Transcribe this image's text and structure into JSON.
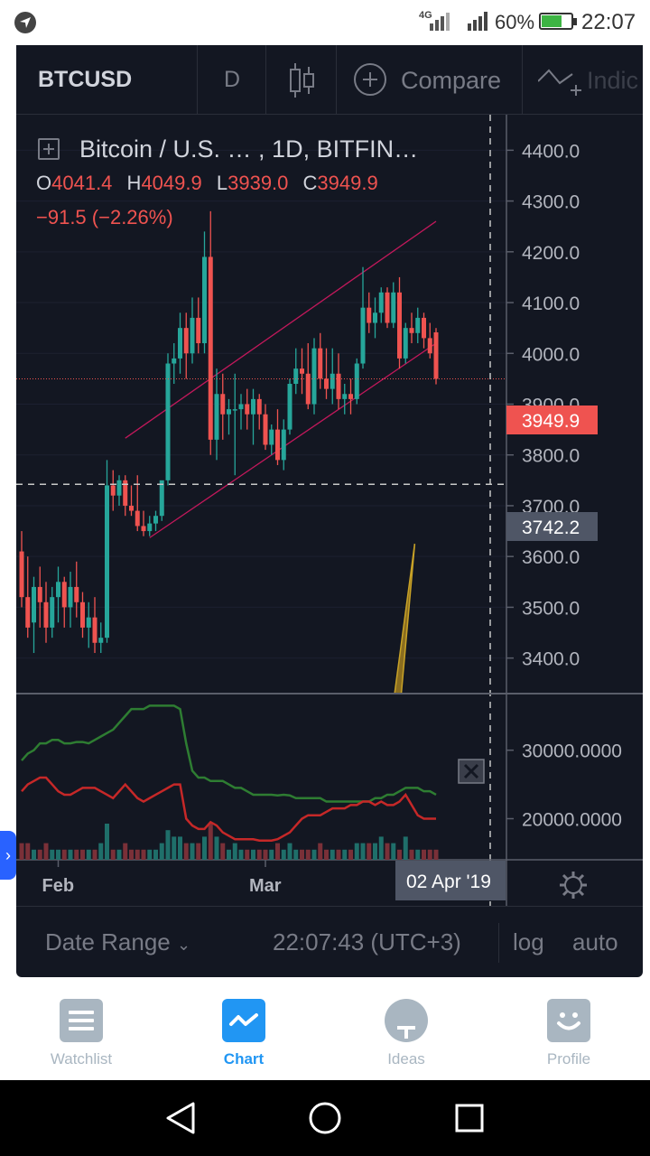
{
  "status_bar": {
    "network": "4G",
    "battery_percent": "60%",
    "battery_level": 0.6,
    "time": "22:07"
  },
  "toolbar": {
    "symbol": "BTCUSD",
    "interval": "D",
    "compare_label": "Compare",
    "indicators_label": "Indic"
  },
  "legend": {
    "title": "Bitcoin / U.S. …  , 1D, BITFIN…",
    "o_key": "O",
    "o_val": "4041.4",
    "h_key": "H",
    "h_val": "4049.9",
    "l_key": "L",
    "l_val": "3939.0",
    "c_key": "C",
    "c_val": "3949.9",
    "change": "−91.5 (−2.26%)"
  },
  "chart_data": [
    {
      "type": "candlestick",
      "symbol": "BTCUSD",
      "interval": "1D",
      "ylim": [
        3330,
        4470
      ],
      "price_ticks": [
        "4400.0",
        "4300.0",
        "4200.0",
        "4100.0",
        "4000.0",
        "3900.0",
        "3800.0",
        "3700.0",
        "3600.0",
        "3500.0",
        "3400.0"
      ],
      "price_tick_values": [
        4400,
        4300,
        4200,
        4100,
        4000,
        3900,
        3800,
        3700,
        3600,
        3500,
        3400
      ],
      "last_price_label": "3949.9",
      "last_price": 3949.9,
      "crosshair_price_label": "3742.2",
      "crosshair_price": 3742.2,
      "time_ticks": [
        "Feb",
        "Mar"
      ],
      "crosshair_date": "02 Apr '19",
      "colors": {
        "up": "#26a69a",
        "down": "#ef5350",
        "channel": "#c2185b",
        "projection": "#c8a227"
      },
      "candles": [
        {
          "o": 3610,
          "h": 3650,
          "l": 3500,
          "c": 3520
        },
        {
          "o": 3520,
          "h": 3600,
          "l": 3440,
          "c": 3460
        },
        {
          "o": 3470,
          "h": 3560,
          "l": 3410,
          "c": 3540
        },
        {
          "o": 3540,
          "h": 3580,
          "l": 3460,
          "c": 3510
        },
        {
          "o": 3510,
          "h": 3550,
          "l": 3430,
          "c": 3460
        },
        {
          "o": 3460,
          "h": 3540,
          "l": 3440,
          "c": 3520
        },
        {
          "o": 3520,
          "h": 3580,
          "l": 3470,
          "c": 3550
        },
        {
          "o": 3550,
          "h": 3560,
          "l": 3460,
          "c": 3500
        },
        {
          "o": 3500,
          "h": 3570,
          "l": 3460,
          "c": 3540
        },
        {
          "o": 3540,
          "h": 3590,
          "l": 3480,
          "c": 3510
        },
        {
          "o": 3510,
          "h": 3530,
          "l": 3440,
          "c": 3460
        },
        {
          "o": 3460,
          "h": 3510,
          "l": 3420,
          "c": 3480
        },
        {
          "o": 3480,
          "h": 3520,
          "l": 3410,
          "c": 3430
        },
        {
          "o": 3430,
          "h": 3470,
          "l": 3410,
          "c": 3440
        },
        {
          "o": 3440,
          "h": 3790,
          "l": 3430,
          "c": 3740
        },
        {
          "o": 3740,
          "h": 3770,
          "l": 3690,
          "c": 3720
        },
        {
          "o": 3720,
          "h": 3760,
          "l": 3700,
          "c": 3750
        },
        {
          "o": 3750,
          "h": 3760,
          "l": 3680,
          "c": 3700
        },
        {
          "o": 3700,
          "h": 3740,
          "l": 3680,
          "c": 3690
        },
        {
          "o": 3690,
          "h": 3760,
          "l": 3650,
          "c": 3660
        },
        {
          "o": 3660,
          "h": 3690,
          "l": 3640,
          "c": 3650
        },
        {
          "o": 3650,
          "h": 3680,
          "l": 3640,
          "c": 3665
        },
        {
          "o": 3665,
          "h": 3690,
          "l": 3650,
          "c": 3680
        },
        {
          "o": 3680,
          "h": 3740,
          "l": 3670,
          "c": 3750
        },
        {
          "o": 3750,
          "h": 4000,
          "l": 3740,
          "c": 3980
        },
        {
          "o": 3980,
          "h": 4020,
          "l": 3940,
          "c": 3990
        },
        {
          "o": 3990,
          "h": 4080,
          "l": 3960,
          "c": 4050
        },
        {
          "o": 4050,
          "h": 4080,
          "l": 3950,
          "c": 4000
        },
        {
          "o": 4000,
          "h": 4110,
          "l": 3980,
          "c": 4070
        },
        {
          "o": 4070,
          "h": 4110,
          "l": 4000,
          "c": 4020
        },
        {
          "o": 4020,
          "h": 4240,
          "l": 4000,
          "c": 4190
        },
        {
          "o": 4190,
          "h": 4280,
          "l": 3800,
          "c": 3830
        },
        {
          "o": 3830,
          "h": 3970,
          "l": 3790,
          "c": 3920
        },
        {
          "o": 3920,
          "h": 3960,
          "l": 3830,
          "c": 3880
        },
        {
          "o": 3880,
          "h": 3910,
          "l": 3840,
          "c": 3890
        },
        {
          "o": 3890,
          "h": 3960,
          "l": 3760,
          "c": 3890
        },
        {
          "o": 3890,
          "h": 3920,
          "l": 3850,
          "c": 3900
        },
        {
          "o": 3900,
          "h": 3930,
          "l": 3850,
          "c": 3880
        },
        {
          "o": 3880,
          "h": 3930,
          "l": 3820,
          "c": 3910
        },
        {
          "o": 3910,
          "h": 3920,
          "l": 3850,
          "c": 3880
        },
        {
          "o": 3880,
          "h": 3900,
          "l": 3810,
          "c": 3820
        },
        {
          "o": 3820,
          "h": 3860,
          "l": 3800,
          "c": 3850
        },
        {
          "o": 3850,
          "h": 3890,
          "l": 3780,
          "c": 3790
        },
        {
          "o": 3790,
          "h": 3870,
          "l": 3770,
          "c": 3850
        },
        {
          "o": 3850,
          "h": 3950,
          "l": 3840,
          "c": 3940
        },
        {
          "o": 3940,
          "h": 4010,
          "l": 3920,
          "c": 3970
        },
        {
          "o": 3970,
          "h": 4010,
          "l": 3920,
          "c": 3960
        },
        {
          "o": 3960,
          "h": 4020,
          "l": 3890,
          "c": 3900
        },
        {
          "o": 3900,
          "h": 4030,
          "l": 3880,
          "c": 4010
        },
        {
          "o": 4010,
          "h": 4040,
          "l": 3930,
          "c": 3950
        },
        {
          "o": 3950,
          "h": 4010,
          "l": 3910,
          "c": 3930
        },
        {
          "o": 3930,
          "h": 4010,
          "l": 3900,
          "c": 3960
        },
        {
          "o": 3960,
          "h": 4000,
          "l": 3890,
          "c": 3910
        },
        {
          "o": 3910,
          "h": 3940,
          "l": 3880,
          "c": 3920
        },
        {
          "o": 3920,
          "h": 3950,
          "l": 3880,
          "c": 3910
        },
        {
          "o": 3910,
          "h": 3990,
          "l": 3900,
          "c": 3980
        },
        {
          "o": 3980,
          "h": 4170,
          "l": 3970,
          "c": 4090
        },
        {
          "o": 4090,
          "h": 4120,
          "l": 4040,
          "c": 4060
        },
        {
          "o": 4060,
          "h": 4110,
          "l": 4030,
          "c": 4080
        },
        {
          "o": 4080,
          "h": 4130,
          "l": 4060,
          "c": 4120
        },
        {
          "o": 4120,
          "h": 4130,
          "l": 4050,
          "c": 4060
        },
        {
          "o": 4060,
          "h": 4140,
          "l": 4050,
          "c": 4120
        },
        {
          "o": 4120,
          "h": 4150,
          "l": 3970,
          "c": 3990
        },
        {
          "o": 3990,
          "h": 4060,
          "l": 3980,
          "c": 4050
        },
        {
          "o": 4050,
          "h": 4080,
          "l": 4020,
          "c": 4040
        },
        {
          "o": 4040,
          "h": 4090,
          "l": 4020,
          "c": 4070
        },
        {
          "o": 4070,
          "h": 4080,
          "l": 4010,
          "c": 4030
        },
        {
          "o": 4030,
          "h": 4060,
          "l": 3990,
          "c": 4000
        },
        {
          "o": 4041.4,
          "h": 4049.9,
          "l": 3939.0,
          "c": 3949.9
        }
      ],
      "channel_lines": [
        {
          "x0": 17,
          "p0": 3833,
          "x1": 68,
          "p1": 4260
        },
        {
          "x0": 21,
          "p0": 3637,
          "x1": 68,
          "p1": 4020
        }
      ],
      "projection_triangle": [
        {
          "x": 61.2,
          "p": 3330
        },
        {
          "x": 64.5,
          "p": 3625
        },
        {
          "x": 62.3,
          "p": 3330
        }
      ]
    },
    {
      "type": "line",
      "ylim": [
        14000,
        38000
      ],
      "ticks": [
        "30000.0000",
        "20000.0000"
      ],
      "tick_values": [
        30000,
        20000
      ],
      "series": [
        {
          "color": "#2e7d32",
          "values": [
            28500,
            29500,
            30000,
            31000,
            31000,
            31500,
            31500,
            31000,
            31000,
            31200,
            31200,
            31000,
            31500,
            32000,
            32500,
            33000,
            34000,
            35000,
            36000,
            36000,
            36000,
            36500,
            36500,
            36500,
            36500,
            36500,
            36000,
            31000,
            27000,
            26000,
            26000,
            25500,
            25500,
            25500,
            25000,
            24500,
            24500,
            24000,
            23500,
            23500,
            23500,
            23500,
            23400,
            23500,
            23400,
            23000,
            23000,
            23000,
            23000,
            23000,
            22500,
            22500,
            22500,
            22500,
            22500,
            22500,
            22500,
            22500,
            23000,
            23000,
            23500,
            23500,
            24000,
            24500,
            24500,
            24500,
            24000,
            24000,
            23500
          ]
        },
        {
          "color": "#c62828",
          "values": [
            24000,
            25000,
            25500,
            26000,
            26000,
            25000,
            24000,
            23500,
            23500,
            24000,
            24500,
            24500,
            24500,
            24000,
            23500,
            23000,
            24000,
            25000,
            24000,
            23000,
            22500,
            23000,
            23500,
            24000,
            24500,
            25000,
            25000,
            20000,
            19000,
            18500,
            18500,
            19500,
            19000,
            18000,
            17500,
            17000,
            17000,
            17000,
            17000,
            16800,
            16800,
            16800,
            17000,
            17500,
            18000,
            19000,
            20000,
            20500,
            20500,
            20500,
            21000,
            21500,
            21500,
            21500,
            22000,
            22000,
            22500,
            22500,
            22000,
            22500,
            22000,
            22000,
            22500,
            23500,
            22000,
            20500,
            20000,
            20000,
            20000
          ]
        }
      ],
      "volume": [
        2,
        2,
        1,
        1,
        2,
        1,
        1,
        1,
        1,
        1,
        1,
        1,
        1,
        2,
        5,
        1,
        1,
        2,
        1,
        1,
        1,
        1,
        1,
        2,
        4,
        3,
        3,
        2,
        2,
        2,
        3,
        5,
        3,
        2,
        1,
        2,
        1,
        1,
        1,
        1,
        1,
        1,
        2,
        1,
        2,
        1,
        1,
        1,
        1,
        2,
        1,
        1,
        1,
        1,
        1,
        2,
        2,
        2,
        2,
        3,
        2,
        2,
        1,
        3,
        1,
        1,
        1,
        1,
        1
      ]
    }
  ],
  "footer": {
    "date_range_label": "Date Range",
    "clock": "22:07:43 (UTC+3)",
    "log_label": "log",
    "auto_label": "auto"
  },
  "bottom_nav": {
    "items": [
      {
        "label": "Watchlist",
        "icon": "list-icon"
      },
      {
        "label": "Chart",
        "icon": "chart-icon"
      },
      {
        "label": "Ideas",
        "icon": "lightbulb-icon"
      },
      {
        "label": "Profile",
        "icon": "smiley-icon"
      }
    ]
  }
}
